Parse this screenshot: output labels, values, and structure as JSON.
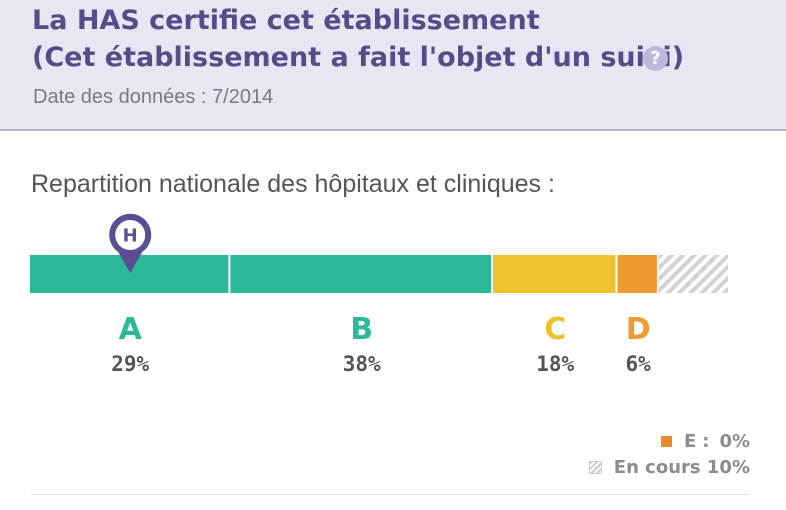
{
  "header": {
    "title_line1": "La HAS certifie cet établissement",
    "title_line2": "(Cet établissement a fait l'objet d'un suivi)",
    "help_icon_glyph": "?",
    "date": "Date des données : 7/2014"
  },
  "chart_data": {
    "type": "bar",
    "orientation": "horizontal-stacked",
    "title": "Repartition nationale des hôpitaux et cliniques :",
    "categories": [
      "A",
      "B",
      "C",
      "D",
      "E",
      "En cours"
    ],
    "values": [
      29,
      38,
      18,
      6,
      0,
      10
    ],
    "value_labels": [
      "29%",
      "38%",
      "18%",
      "6%",
      "0%",
      "10%"
    ],
    "colors": [
      "#2bb99a",
      "#2bb99a",
      "#edc22e",
      "#ee9a31",
      "#e8812b",
      "hatched-grey"
    ],
    "marker": {
      "category": "A",
      "icon": "hospital-pin-icon",
      "glyph": "H",
      "color": "#5b4f93"
    },
    "legend": [
      {
        "letter": "E",
        "colon": ":",
        "value": "0%",
        "swatch": "orange-square"
      },
      {
        "label": "En cours",
        "value": "10%",
        "swatch": "hatched-square"
      }
    ]
  }
}
